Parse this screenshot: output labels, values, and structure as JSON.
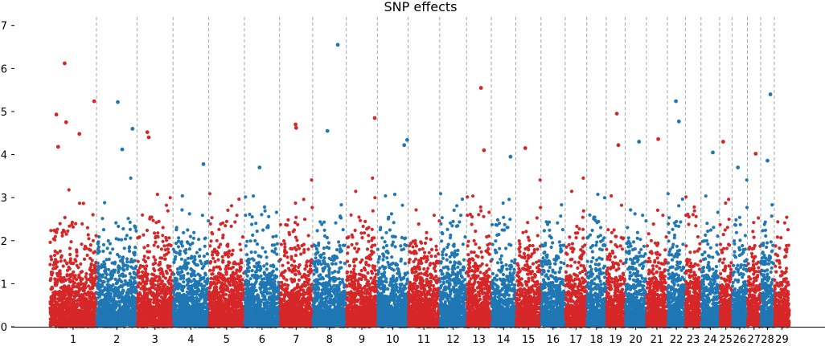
{
  "chart_data": {
    "type": "scatter",
    "title": "SNP effects",
    "xlabel": "",
    "ylabel": "",
    "ylim": [
      0,
      7.2
    ],
    "yticks": [
      0,
      1,
      2,
      3,
      4,
      5,
      6,
      7
    ],
    "grid": "vertical dashed separators between chromosomes",
    "legend": "none",
    "colors": {
      "odd": "#d62728",
      "even": "#1f77b4",
      "separator": "#a6a6a6",
      "axis": "#000000"
    },
    "categories": [
      "1",
      "2",
      "3",
      "4",
      "5",
      "6",
      "7",
      "8",
      "9",
      "10",
      "11",
      "12",
      "13",
      "14",
      "15",
      "16",
      "17",
      "18",
      "19",
      "20",
      "21",
      "22",
      "23",
      "24",
      "25",
      "26",
      "27",
      "28",
      "29"
    ],
    "chromosome_ranges": [
      {
        "chr": "1",
        "start": 0,
        "end": 158
      },
      {
        "chr": "2",
        "start": 158,
        "end": 295
      },
      {
        "chr": "3",
        "start": 295,
        "end": 417
      },
      {
        "chr": "4",
        "start": 417,
        "end": 538
      },
      {
        "chr": "5",
        "start": 538,
        "end": 659
      },
      {
        "chr": "6",
        "start": 659,
        "end": 778
      },
      {
        "chr": "7",
        "start": 778,
        "end": 890
      },
      {
        "chr": "8",
        "start": 890,
        "end": 1004
      },
      {
        "chr": "9",
        "start": 1004,
        "end": 1109
      },
      {
        "chr": "10",
        "start": 1109,
        "end": 1213
      },
      {
        "chr": "11",
        "start": 1213,
        "end": 1320
      },
      {
        "chr": "12",
        "start": 1320,
        "end": 1411
      },
      {
        "chr": "13",
        "start": 1411,
        "end": 1495
      },
      {
        "chr": "14",
        "start": 1495,
        "end": 1578
      },
      {
        "chr": "15",
        "start": 1578,
        "end": 1663
      },
      {
        "chr": "16",
        "start": 1663,
        "end": 1745
      },
      {
        "chr": "17",
        "start": 1745,
        "end": 1818
      },
      {
        "chr": "18",
        "start": 1818,
        "end": 1884
      },
      {
        "chr": "19",
        "start": 1884,
        "end": 1948
      },
      {
        "chr": "20",
        "start": 1948,
        "end": 2020
      },
      {
        "chr": "21",
        "start": 2020,
        "end": 2091
      },
      {
        "chr": "22",
        "start": 2091,
        "end": 2152
      },
      {
        "chr": "23",
        "start": 2152,
        "end": 2205
      },
      {
        "chr": "24",
        "start": 2205,
        "end": 2268
      },
      {
        "chr": "25",
        "start": 2268,
        "end": 2310
      },
      {
        "chr": "26",
        "start": 2310,
        "end": 2362
      },
      {
        "chr": "27",
        "start": 2362,
        "end": 2407
      },
      {
        "chr": "28",
        "start": 2407,
        "end": 2453
      },
      {
        "chr": "29",
        "start": 2453,
        "end": 2505
      }
    ],
    "notable_points": [
      {
        "chr": "1",
        "x": 50,
        "y": 6.12
      },
      {
        "chr": "1",
        "x": 22,
        "y": 4.93
      },
      {
        "chr": "1",
        "x": 55,
        "y": 4.75
      },
      {
        "chr": "1",
        "x": 28,
        "y": 4.18
      },
      {
        "chr": "1",
        "x": 100,
        "y": 4.48
      },
      {
        "chr": "1",
        "x": 150,
        "y": 5.24
      },
      {
        "chr": "2",
        "x": 230,
        "y": 5.22
      },
      {
        "chr": "2",
        "x": 245,
        "y": 4.12
      },
      {
        "chr": "2",
        "x": 280,
        "y": 4.6
      },
      {
        "chr": "3",
        "x": 330,
        "y": 4.52
      },
      {
        "chr": "3",
        "x": 335,
        "y": 4.4
      },
      {
        "chr": "4",
        "x": 520,
        "y": 3.78
      },
      {
        "chr": "6",
        "x": 710,
        "y": 3.7
      },
      {
        "chr": "7",
        "x": 832,
        "y": 4.7
      },
      {
        "chr": "7",
        "x": 834,
        "y": 4.62
      },
      {
        "chr": "8",
        "x": 940,
        "y": 4.55
      },
      {
        "chr": "8",
        "x": 975,
        "y": 6.55
      },
      {
        "chr": "9",
        "x": 1100,
        "y": 4.85
      },
      {
        "chr": "10",
        "x": 1200,
        "y": 4.22
      },
      {
        "chr": "10",
        "x": 1210,
        "y": 4.34
      },
      {
        "chr": "13",
        "x": 1460,
        "y": 5.55
      },
      {
        "chr": "13",
        "x": 1470,
        "y": 4.1
      },
      {
        "chr": "14",
        "x": 1560,
        "y": 3.95
      },
      {
        "chr": "15",
        "x": 1610,
        "y": 4.15
      },
      {
        "chr": "19",
        "x": 1920,
        "y": 4.95
      },
      {
        "chr": "19",
        "x": 1925,
        "y": 4.22
      },
      {
        "chr": "20",
        "x": 1995,
        "y": 4.3
      },
      {
        "chr": "21",
        "x": 2060,
        "y": 4.36
      },
      {
        "chr": "22",
        "x": 2120,
        "y": 5.24
      },
      {
        "chr": "22",
        "x": 2130,
        "y": 4.77
      },
      {
        "chr": "24",
        "x": 2245,
        "y": 4.05
      },
      {
        "chr": "25",
        "x": 2280,
        "y": 4.3
      },
      {
        "chr": "26",
        "x": 2330,
        "y": 3.7
      },
      {
        "chr": "27",
        "x": 2390,
        "y": 4.02
      },
      {
        "chr": "28",
        "x": 2430,
        "y": 3.86
      },
      {
        "chr": "28",
        "x": 2440,
        "y": 5.4
      }
    ]
  }
}
